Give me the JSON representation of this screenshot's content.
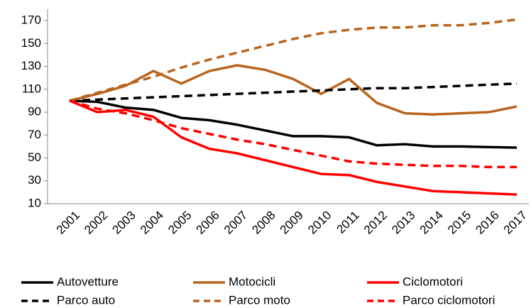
{
  "chart_data": {
    "type": "line",
    "categories": [
      "2001",
      "2002",
      "2003",
      "2004",
      "2005",
      "2006",
      "2007",
      "2008",
      "2009",
      "2010",
      "2011",
      "2012",
      "2013",
      "2014",
      "2015",
      "2016",
      "2017"
    ],
    "series": [
      {
        "name": "Autovetture",
        "color": "#000000",
        "dash": false,
        "values": [
          100,
          99,
          94,
          92,
          85,
          83,
          79,
          74,
          69,
          69,
          68,
          61,
          62,
          60,
          60,
          59.5,
          59
        ]
      },
      {
        "name": "Motocicli",
        "color": "#b8641e",
        "dash": false,
        "values": [
          100,
          106,
          113,
          126,
          115,
          126,
          131,
          127,
          119,
          106,
          119,
          98,
          89,
          88,
          89,
          90,
          95
        ]
      },
      {
        "name": "Ciclomotori",
        "color": "#ff0000",
        "dash": false,
        "values": [
          100,
          90,
          92,
          86,
          68,
          58,
          54,
          48,
          42,
          36,
          35,
          29,
          25,
          21,
          20,
          19,
          18
        ]
      },
      {
        "name": "Parco auto",
        "color": "#000000",
        "dash": true,
        "values": [
          100,
          101,
          102,
          103,
          104,
          105,
          106,
          107,
          108,
          109,
          110,
          111,
          111,
          112,
          113,
          114,
          115
        ]
      },
      {
        "name": "Parco moto",
        "color": "#b8641e",
        "dash": true,
        "values": [
          100,
          107,
          114,
          121,
          129,
          136,
          142,
          148,
          154,
          159,
          162,
          164,
          164,
          166,
          166,
          168,
          171
        ]
      },
      {
        "name": "Parco ciclomotori",
        "color": "#ff0000",
        "dash": true,
        "values": [
          100,
          93,
          89,
          83,
          76,
          71,
          66,
          62,
          57,
          52,
          47,
          45,
          44,
          43,
          43,
          42,
          42
        ]
      }
    ],
    "ylim": [
      10,
      180
    ],
    "yticks": [
      10,
      30,
      50,
      70,
      90,
      110,
      130,
      150,
      170
    ],
    "grid": false,
    "legend": "bottom"
  }
}
